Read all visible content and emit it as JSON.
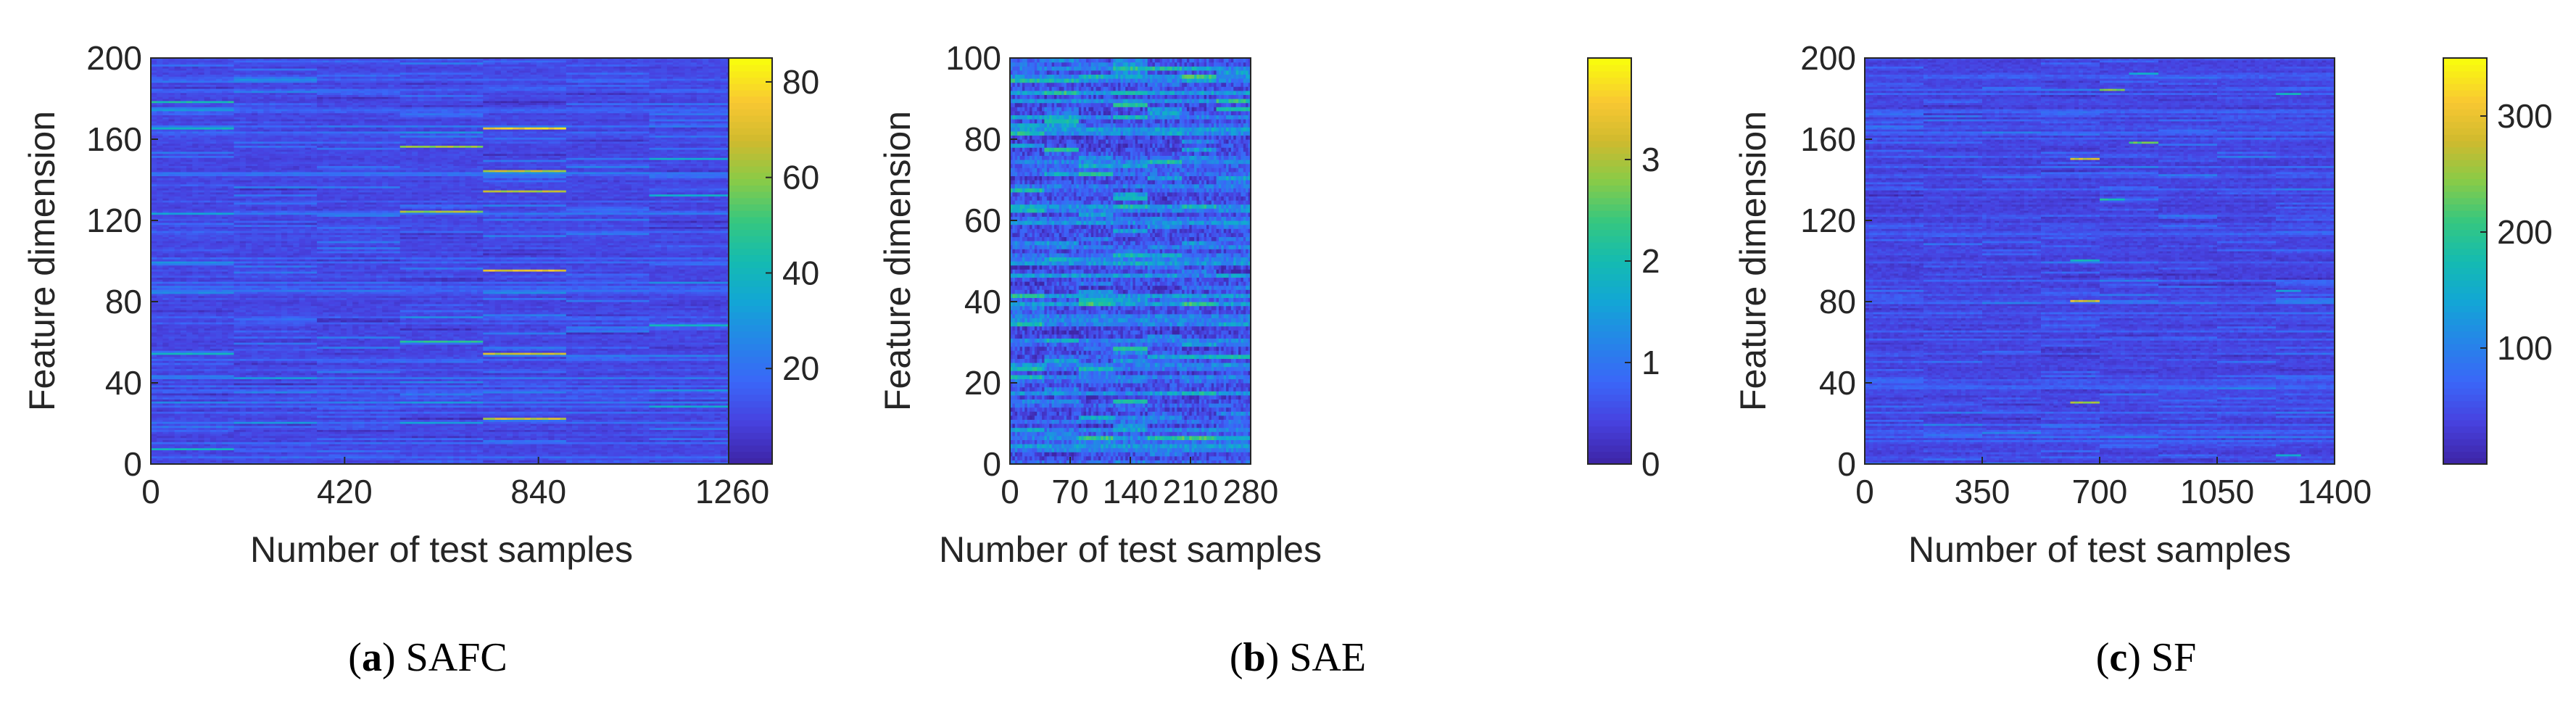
{
  "chart_data": [
    {
      "type": "heatmap",
      "caption": {
        "open": "(",
        "letter": "a",
        "close": ")",
        "name": " SAFC"
      },
      "xlabel": "Number of test samples",
      "ylabel": "Feature dimension",
      "xlim": [
        0,
        1260
      ],
      "ylim": [
        0,
        200
      ],
      "xticks": [
        "0",
        "420",
        "840",
        "1260"
      ],
      "yticks": [
        "0",
        "40",
        "80",
        "120",
        "160",
        "200"
      ],
      "colorbar": {
        "min": 0,
        "max": 85,
        "ticks": [
          "20",
          "40",
          "60",
          "80"
        ]
      },
      "num_blocks": 7,
      "num_rows": 200,
      "base_level": 0.09,
      "row_density": 0.35,
      "row_strength": 0.16,
      "noise": 0.03,
      "seed": 11,
      "hotspots": [
        {
          "x": [
            720,
            900
          ],
          "y": 165,
          "v": 0.97
        },
        {
          "x": [
            720,
            900
          ],
          "y": 144,
          "v": 0.82
        },
        {
          "x": [
            720,
            900
          ],
          "y": 134,
          "v": 0.82
        },
        {
          "x": [
            720,
            900
          ],
          "y": 95,
          "v": 0.92
        },
        {
          "x": [
            720,
            900
          ],
          "y": 54,
          "v": 0.85
        },
        {
          "x": [
            720,
            900
          ],
          "y": 22,
          "v": 0.85
        },
        {
          "x": [
            540,
            720
          ],
          "y": 156,
          "v": 0.78
        },
        {
          "x": [
            540,
            720
          ],
          "y": 124,
          "v": 0.78
        },
        {
          "x": [
            540,
            720
          ],
          "y": 60,
          "v": 0.6
        },
        {
          "x": [
            0,
            180
          ],
          "y": 178,
          "v": 0.55
        },
        {
          "x": [
            0,
            180
          ],
          "y": 165,
          "v": 0.5
        },
        {
          "x": [
            0,
            180
          ],
          "y": 54,
          "v": 0.5
        },
        {
          "x": [
            0,
            180
          ],
          "y": 7,
          "v": 0.5
        },
        {
          "x": [
            1080,
            1260
          ],
          "y": 150,
          "v": 0.45
        },
        {
          "x": [
            1080,
            1260
          ],
          "y": 132,
          "v": 0.45
        },
        {
          "x": [
            1080,
            1260
          ],
          "y": 68,
          "v": 0.5
        },
        {
          "x": [
            1080,
            1260
          ],
          "y": 28,
          "v": 0.45
        }
      ]
    },
    {
      "type": "heatmap",
      "caption": {
        "open": "(",
        "letter": "b",
        "close": ")",
        "name": " SAE"
      },
      "xlabel": "Number of test samples",
      "ylabel": "Feature dimension",
      "xlim": [
        0,
        280
      ],
      "ylim": [
        0,
        100
      ],
      "xticks": [
        "0",
        "70",
        "140",
        "210",
        "280"
      ],
      "yticks": [
        "0",
        "20",
        "40",
        "60",
        "80",
        "100"
      ],
      "colorbar": {
        "min": 0,
        "max": 4,
        "ticks": [
          "0",
          "1",
          "2",
          "3"
        ]
      },
      "num_blocks": 7,
      "num_rows": 100,
      "base_level": 0.1,
      "row_density": 0.5,
      "row_strength": 0.28,
      "noise": 0.1,
      "seed": 23,
      "hotspots": [
        {
          "x": [
            120,
            160
          ],
          "y": 91,
          "v": 0.55
        },
        {
          "x": [
            120,
            160
          ],
          "y": 88,
          "v": 0.6
        },
        {
          "x": [
            120,
            160
          ],
          "y": 65,
          "v": 0.5
        },
        {
          "x": [
            120,
            160
          ],
          "y": 28,
          "v": 0.6
        },
        {
          "x": [
            120,
            160
          ],
          "y": 15,
          "v": 0.55
        },
        {
          "x": [
            40,
            80
          ],
          "y": 84,
          "v": 0.55
        },
        {
          "x": [
            40,
            80
          ],
          "y": 77,
          "v": 0.6
        },
        {
          "x": [
            80,
            120
          ],
          "y": 71,
          "v": 0.6
        },
        {
          "x": [
            80,
            120
          ],
          "y": 40,
          "v": 0.5
        },
        {
          "x": [
            240,
            280
          ],
          "y": 87,
          "v": 0.55
        },
        {
          "x": [
            240,
            280
          ],
          "y": 26,
          "v": 0.55
        },
        {
          "x": [
            240,
            280
          ],
          "y": 6,
          "v": 0.45
        }
      ]
    },
    {
      "type": "heatmap",
      "caption": {
        "open": "(",
        "letter": "c",
        "close": ")",
        "name": " SF"
      },
      "xlabel": "Number of test samples",
      "ylabel": "Feature dimension",
      "xlim": [
        0,
        1400
      ],
      "ylim": [
        0,
        200
      ],
      "xticks": [
        "0",
        "350",
        "700",
        "1050",
        "1400"
      ],
      "yticks": [
        "0",
        "40",
        "80",
        "120",
        "160",
        "200"
      ],
      "colorbar": {
        "min": 0,
        "max": 350,
        "ticks": [
          "100",
          "200",
          "300"
        ]
      },
      "num_blocks": 8,
      "num_rows": 200,
      "base_level": 0.08,
      "row_density": 0.3,
      "row_strength": 0.12,
      "noise": 0.03,
      "seed": 37,
      "hotspots": [
        {
          "x": [
            612,
            700
          ],
          "y": 150,
          "v": 0.85
        },
        {
          "x": [
            612,
            700
          ],
          "y": 80,
          "v": 0.88
        },
        {
          "x": [
            612,
            700
          ],
          "y": 30,
          "v": 0.82
        },
        {
          "x": [
            612,
            700
          ],
          "y": 100,
          "v": 0.5
        },
        {
          "x": [
            700,
            787
          ],
          "y": 184,
          "v": 0.75
        },
        {
          "x": [
            700,
            787
          ],
          "y": 130,
          "v": 0.55
        },
        {
          "x": [
            787,
            875
          ],
          "y": 158,
          "v": 0.7
        },
        {
          "x": [
            787,
            875
          ],
          "y": 192,
          "v": 0.45
        },
        {
          "x": [
            1225,
            1312
          ],
          "y": 182,
          "v": 0.5
        },
        {
          "x": [
            1225,
            1312
          ],
          "y": 85,
          "v": 0.4
        },
        {
          "x": [
            1225,
            1312
          ],
          "y": 4,
          "v": 0.45
        }
      ]
    }
  ]
}
